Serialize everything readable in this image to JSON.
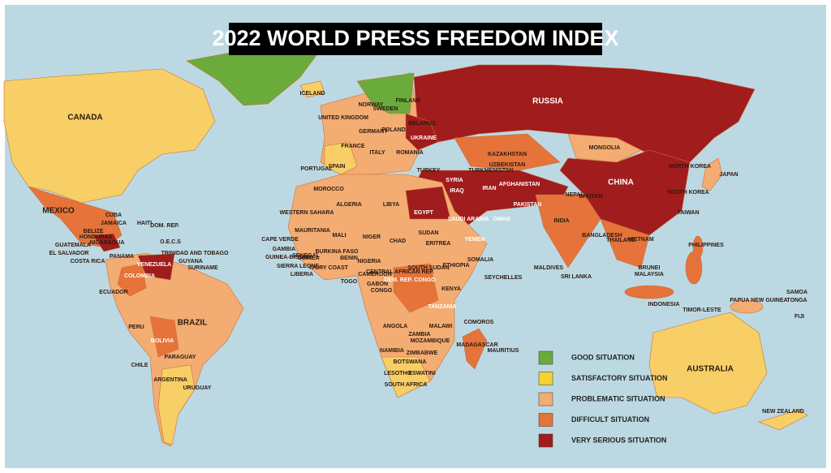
{
  "title": "2022 WORLD PRESS FREEDOM INDEX",
  "legend": [
    {
      "label": "GOOD SITUATION",
      "color": "#6aab3c"
    },
    {
      "label": "SATISFACTORY SITUATION",
      "color": "#f5d22e"
    },
    {
      "label": "PROBLEMATIC SITUATION",
      "color": "#f3ac72"
    },
    {
      "label": "DIFFICULT SITUATION",
      "color": "#e5733a"
    },
    {
      "label": "VERY SERIOUS SITUATION",
      "color": "#a11c1c"
    }
  ],
  "labels": [
    "CANADA",
    "RUSSIA",
    "CHINA",
    "BRAZIL",
    "AUSTRALIA",
    "MEXICO",
    "INDIA",
    "MONGOLIA",
    "KAZAKHSTAN",
    "ALGERIA",
    "LIBYA",
    "EGYPT",
    "SUDAN",
    "CHAD",
    "NIGER",
    "MALI",
    "MAURITANIA",
    "NIGERIA",
    "ETHIOPIA",
    "SOMALIA",
    "KENYA",
    "TANZANIA",
    "ANGOLA",
    "ZAMBIA",
    "NAMIBIA",
    "BOTSWANA",
    "SOUTH AFRICA",
    "MADAGASCAR",
    "COLOMBIA",
    "VENEZUELA",
    "PERU",
    "BOLIVIA",
    "PARAGUAY",
    "ARGENTINA",
    "CHILE",
    "URUGUAY",
    "ECUADOR",
    "INDONESIA",
    "PHILIPPINES",
    "JAPAN",
    "ICELAND",
    "NORWAY",
    "SWEDEN",
    "FINLAND",
    "UKRAINE",
    "TURKEY",
    "IRAN",
    "SAUDI ARABIA",
    "NEW ZEALAND",
    "CUBA",
    "PAPUA NEW GUINEA",
    "SOUTH SUDAN",
    "DEM. REP. CONGO",
    "FRANCE",
    "SPAIN",
    "UNITED KINGDOM",
    "GUATEMALA",
    "HONDURAS",
    "NICARAGUA",
    "PANAMA",
    "GUYANA",
    "SURINAME",
    "AFGHANISTAN",
    "PAKISTAN",
    "NEPAL",
    "BANGLADESH",
    "THAILAND",
    "VIETNAM",
    "MALAYSIA",
    "SOUTH KOREA",
    "NORTH KOREA",
    "TAIWAN",
    "YEMEN",
    "OMAN",
    "IRAQ",
    "SYRIA",
    "MOROCCO",
    "WESTERN SAHARA",
    "SENEGAL",
    "GUINEA",
    "SIERRA LEONE",
    "LIBERIA",
    "CAMEROON",
    "GABON",
    "CONGO",
    "MOZAMBIQUE",
    "ZIMBABWE",
    "MALAWI",
    "ERITREA",
    "SRI LANKA",
    "MALDIVES",
    "SEYCHELLES",
    "MAURITIUS",
    "COMOROS",
    "FIJI",
    "POLAND",
    "GERMANY",
    "ITALY",
    "PORTUGAL",
    "ROMANIA",
    "BELARUS",
    "TURKMENISTAN",
    "UZBEKISTAN",
    "JAMAICA",
    "HAITI",
    "DOM. REP.",
    "TRINIDAD AND TOBAGO",
    "O.E.C.S",
    "EL SALVADOR",
    "COSTA RICA",
    "BELIZE",
    "BURKINA FASO",
    "BENIN",
    "TOGO",
    "IVORY COAST",
    "CAPE VERDE",
    "GAMBIA",
    "GUINEA-BISSAU",
    "CENTRAL AFRICAN REP.",
    "TIMOR-LESTE",
    "BRUNEI",
    "LESOTHO",
    "ESWATINI",
    "BHUTAN",
    "SAMOA",
    "TONGA"
  ]
}
